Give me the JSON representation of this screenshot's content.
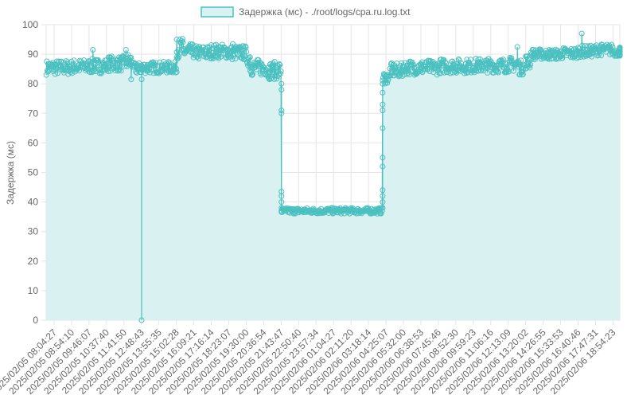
{
  "chart_data": {
    "type": "line",
    "ylabel": "Задержка (мс)",
    "ylim": [
      0,
      100
    ],
    "y_ticks": [
      0,
      10,
      20,
      30,
      40,
      50,
      60,
      70,
      80,
      90,
      100
    ],
    "grid": true,
    "legend_position": "top",
    "series": [
      {
        "name": "Задержка (мс) - ./root/logs/cpa.ru.log.txt",
        "stroke_color": "#4bc0c0",
        "fill_color": "#d9f1f1"
      }
    ],
    "x_tick_labels": [
      "2025/02/05 08:04:27",
      "2025/02/05 08:54:10",
      "2025/02/05 09:46:07",
      "2025/02/05 10:37:40",
      "2025/02/05 11:41:50",
      "2025/02/05 12:48:43",
      "2025/02/05 13:55:35",
      "2025/02/05 15:02:28",
      "2025/02/05 16:09:21",
      "2025/02/05 17:16:14",
      "2025/02/05 18:23:07",
      "2025/02/05 19:30:00",
      "2025/02/05 20:36:54",
      "2025/02/05 21:43:47",
      "2025/02/05 22:50:40",
      "2025/02/05 23:57:34",
      "2025/02/06 01:04:27",
      "2025/02/06 02:11:20",
      "2025/02/06 03:18:14",
      "2025/02/06 04:25:07",
      "2025/02/06 05:32:00",
      "2025/02/06 06:38:53",
      "2025/02/06 07:45:46",
      "2025/02/06 08:52:30",
      "2025/02/06 09:59:23",
      "2025/02/06 11:06:16",
      "2025/02/06 12:13:09",
      "2025/02/06 13:20:02",
      "2025/02/06 14:26:55",
      "2025/02/06 15:33:53",
      "2025/02/06 16:40:46",
      "2025/02/06 17:47:31",
      "2025/02/06 18:54:23"
    ],
    "segments": [
      {
        "from": 0.0,
        "to": 1.0,
        "base": 85.5,
        "jitter": 2.5
      },
      {
        "from": 1.0,
        "to": 2.0,
        "base": 85.8,
        "jitter": 2.5
      },
      {
        "from": 2.0,
        "to": 3.0,
        "base": 86.0,
        "jitter": 2.5
      },
      {
        "from": 3.0,
        "to": 4.0,
        "base": 86.8,
        "jitter": 2.6
      },
      {
        "from": 4.0,
        "to": 4.5,
        "base": 87.5,
        "jitter": 3.0
      },
      {
        "from": 4.5,
        "to": 5.0,
        "base": 85.2,
        "jitter": 2.0
      },
      {
        "from": 5.0,
        "to": 7.0,
        "base": 85.5,
        "jitter": 2.0
      },
      {
        "from": 7.0,
        "to": 7.4,
        "base": 92.0,
        "jitter": 3.5
      },
      {
        "from": 7.4,
        "to": 8.0,
        "base": 91.0,
        "jitter": 2.5
      },
      {
        "from": 8.0,
        "to": 9.0,
        "base": 90.5,
        "jitter": 2.5
      },
      {
        "from": 9.0,
        "to": 10.0,
        "base": 91.0,
        "jitter": 2.5
      },
      {
        "from": 10.0,
        "to": 11.0,
        "base": 90.5,
        "jitter": 2.5
      },
      {
        "from": 11.0,
        "to": 11.2,
        "base": 88.5,
        "jitter": 2.5
      },
      {
        "from": 11.2,
        "to": 12.2,
        "base": 85.5,
        "jitter": 2.8
      },
      {
        "from": 12.2,
        "to": 13.0,
        "base": 84.5,
        "jitter": 3.0
      },
      {
        "from": 13.0,
        "to": 18.8,
        "base": 37.0,
        "jitter": 1.0
      },
      {
        "from": 18.8,
        "to": 19.2,
        "base": 82.0,
        "jitter": 2.0
      },
      {
        "from": 19.2,
        "to": 20.0,
        "base": 84.5,
        "jitter": 2.5
      },
      {
        "from": 20.0,
        "to": 22.0,
        "base": 85.5,
        "jitter": 2.5
      },
      {
        "from": 22.0,
        "to": 24.0,
        "base": 86.0,
        "jitter": 2.5
      },
      {
        "from": 24.0,
        "to": 26.0,
        "base": 86.2,
        "jitter": 2.5
      },
      {
        "from": 26.0,
        "to": 26.6,
        "base": 86.5,
        "jitter": 2.5
      },
      {
        "from": 26.6,
        "to": 27.0,
        "base": 85.5,
        "jitter": 2.5
      },
      {
        "from": 27.0,
        "to": 27.3,
        "base": 87.5,
        "jitter": 2.5
      },
      {
        "from": 27.3,
        "to": 29.0,
        "base": 90.0,
        "jitter": 1.8
      },
      {
        "from": 29.0,
        "to": 30.0,
        "base": 90.3,
        "jitter": 2.0
      },
      {
        "from": 30.0,
        "to": 31.0,
        "base": 91.0,
        "jitter": 2.0
      },
      {
        "from": 31.0,
        "to": 32.0,
        "base": 91.5,
        "jitter": 2.0
      },
      {
        "from": 32.0,
        "to": 33.0,
        "base": 90.8,
        "jitter": 1.5
      }
    ],
    "transitions": [
      {
        "at": 5.0,
        "values": [
          81.5,
          85.0,
          0.0,
          85.0
        ]
      },
      {
        "at": 7.0,
        "values": [
          84.0,
          89.0,
          95.0
        ]
      },
      {
        "at": 11.2,
        "values": [
          89.0,
          86.0
        ]
      },
      {
        "at": 13.0,
        "values": [
          80.0,
          78.0,
          71.0,
          70.0,
          43.5,
          42.0,
          40.0,
          38.0,
          37.0
        ]
      },
      {
        "at": 18.8,
        "values": [
          38.0,
          40.0,
          42.0,
          44.0,
          52.0,
          55.0,
          65.0,
          71.0,
          73.0,
          77.0,
          80.0
        ]
      }
    ],
    "spikes": [
      {
        "at": 2.2,
        "value": 91.5
      },
      {
        "at": 4.1,
        "value": 91.5
      },
      {
        "at": 4.4,
        "value": 81.5
      },
      {
        "at": 10.2,
        "value": 93.5
      },
      {
        "at": 26.5,
        "value": 92.5
      },
      {
        "at": 30.2,
        "value": 97.0
      }
    ]
  }
}
